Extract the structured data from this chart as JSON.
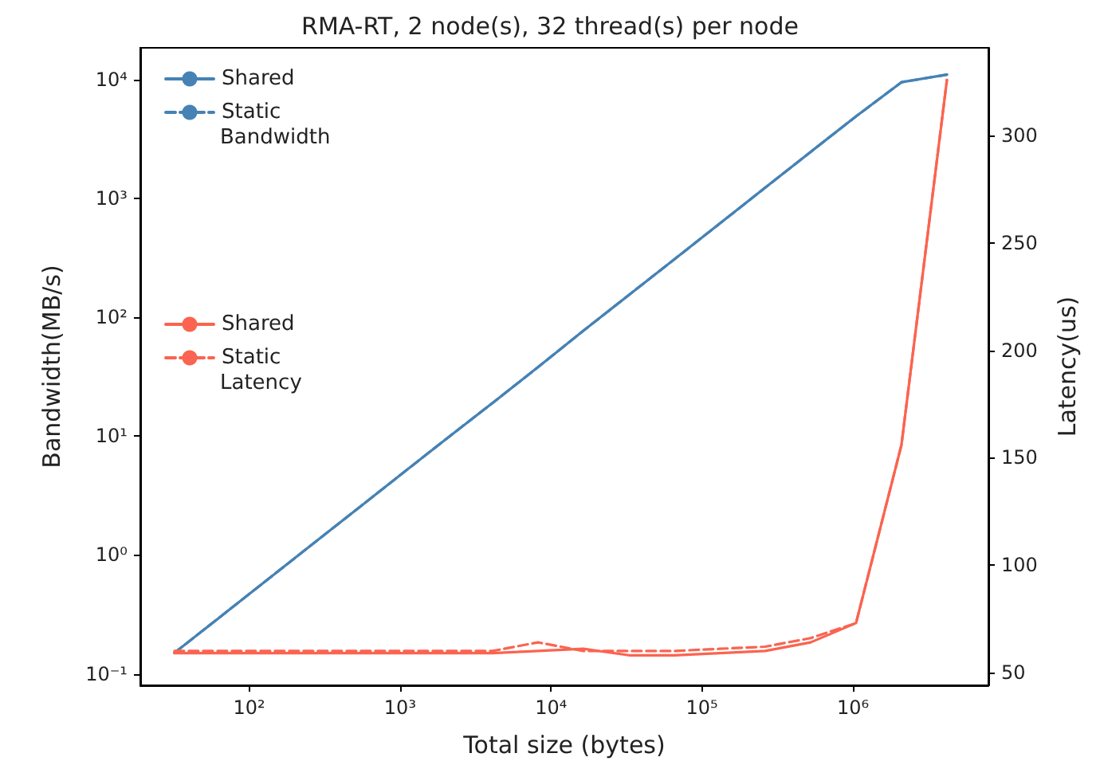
{
  "chart_data": {
    "type": "line",
    "title": "RMA-RT, 2 node(s), 32 thread(s) per node",
    "xlabel": "Total size (bytes)",
    "ylabel": "Bandwidth(MB/s)",
    "y2label": "Latency(us)",
    "x": [
      32,
      64,
      128,
      256,
      512,
      1024,
      2048,
      4096,
      8192,
      16384,
      32768,
      65536,
      131072,
      262144,
      524288,
      1048576,
      2097152,
      4194304
    ],
    "series": [
      {
        "name": "Shared",
        "color": "#4682b4",
        "line_style": "solid",
        "values": [
          0.15,
          0.3,
          0.6,
          1.2,
          2.4,
          4.8,
          9.6,
          19,
          38,
          77,
          154,
          307,
          614,
          1230,
          2460,
          4900,
          9500,
          11000
        ]
      },
      {
        "name": "Static",
        "color": "#4682b4",
        "line_style": "dashed",
        "values": [
          0.15,
          0.3,
          0.6,
          1.2,
          2.4,
          4.8,
          9.6,
          19,
          38,
          77,
          154,
          307,
          614,
          1230,
          2460,
          4900,
          9500,
          11000
        ]
      },
      {
        "name": "Shared",
        "color": "#fa6450",
        "line_style": "solid",
        "axis": "y2",
        "values": [
          59,
          59,
          59,
          59,
          59,
          59,
          59,
          59,
          60,
          61,
          58,
          58,
          59,
          60,
          64,
          73,
          156,
          326
        ]
      },
      {
        "name": "Static",
        "color": "#fa6450",
        "line_style": "dashed",
        "axis": "y2",
        "values": [
          60,
          60,
          60,
          60,
          60,
          60,
          60,
          60,
          64,
          60,
          60,
          60,
          61,
          62,
          66,
          73,
          156,
          326
        ]
      }
    ],
    "annotations": [
      "Bandwidth",
      "Latency"
    ],
    "log": "xy",
    "xlim": [
      19,
      7900000
    ],
    "xticks": [
      {
        "value": 100,
        "label": "10²"
      },
      {
        "value": 1000,
        "label": "10³"
      },
      {
        "value": 10000,
        "label": "10⁴"
      },
      {
        "value": 100000,
        "label": "10⁵"
      },
      {
        "value": 1000000,
        "label": "10⁶"
      }
    ],
    "ylim": [
      0.08,
      18500
    ],
    "yticks": [
      {
        "value": 0.1,
        "label": "10⁻¹"
      },
      {
        "value": 1,
        "label": "10⁰"
      },
      {
        "value": 10,
        "label": "10¹"
      },
      {
        "value": 100,
        "label": "10²"
      },
      {
        "value": 1000,
        "label": "10³"
      },
      {
        "value": 10000,
        "label": "10⁴"
      }
    ],
    "y2lim": [
      44,
      341
    ],
    "y2ticks": [
      50,
      100,
      150,
      200,
      250,
      300
    ],
    "legend": "top left",
    "grid": false,
    "marker": "none"
  }
}
